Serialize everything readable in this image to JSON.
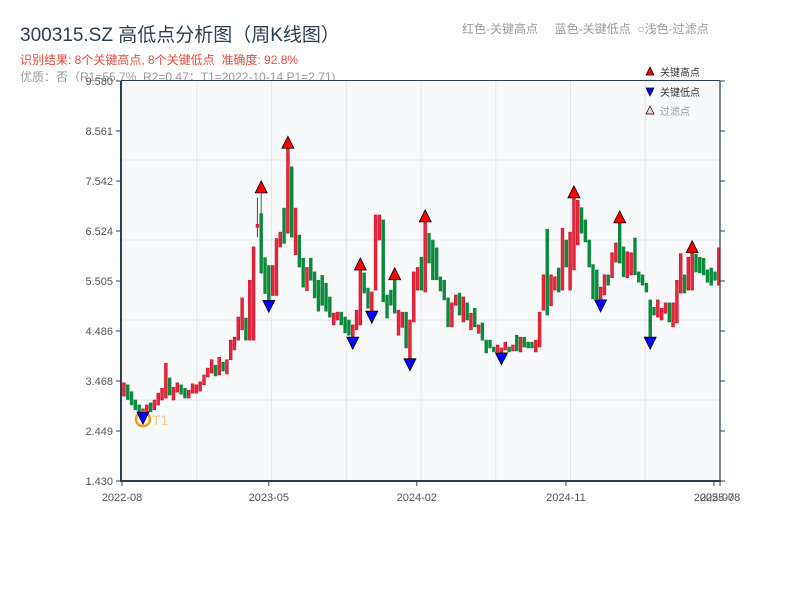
{
  "header": {
    "title": "300315.SZ 高低点分析图（周K线图）",
    "result_line": "识别结果: 8个关键高点, 8个关键低点  准确度: 92.8%",
    "quality_line": "优质：否（R1=55.7%, R2=0.47；T1=2022-10-14 P1=2.71)"
  },
  "top_legend": {
    "text": "红色-关键高点     蓝色-关键低点  ○浅色-过滤点"
  },
  "legend": {
    "position": "upper right",
    "items": [
      {
        "label": "关键高点",
        "marker": "triangle-up",
        "fill": "#ff0000",
        "text_color": "#333333"
      },
      {
        "label": "关键低点",
        "marker": "triangle-down",
        "fill": "#0000ff",
        "text_color": "#333333"
      },
      {
        "label": "过滤点",
        "marker": "triangle-up",
        "fill": "#ffd0d0",
        "text_color": "#9a9a9a"
      }
    ]
  },
  "colors": {
    "up_fill": "#e8293b",
    "up_stroke": "#c8102e",
    "down_fill": "#0b8a3c",
    "high_marker": "#ff0000",
    "low_marker": "#0000ff",
    "t1_ring": "#f39c12",
    "t1_label": "#f5c98a",
    "axis": "#2c3e50",
    "grid": "#e3e7ec",
    "plot_bg": "#f7f9fb",
    "tick_label": "#555555"
  },
  "chart_data": {
    "type": "bar",
    "subtype": "candlestick_ohlc",
    "title": "300315.SZ 高低点分析图（周K线图）",
    "xlabel": "",
    "ylabel": "",
    "ylim": [
      1.43,
      9.58
    ],
    "xlim": [
      -0.5,
      156.3
    ],
    "grid": true,
    "yticks": [
      {
        "label": "9.580",
        "value": 9.58
      },
      {
        "label": "8.561",
        "value": 8.561
      },
      {
        "label": "7.542",
        "value": 7.542
      },
      {
        "label": "6.524",
        "value": 6.524
      },
      {
        "label": "5.505",
        "value": 5.505
      },
      {
        "label": "4.486",
        "value": 4.486
      },
      {
        "label": "3.468",
        "value": 3.468
      },
      {
        "label": "2.449",
        "value": 2.449
      },
      {
        "label": "1.430",
        "value": 1.43
      }
    ],
    "xticks": [
      {
        "label": "2022-08",
        "at": -0.5
      },
      {
        "label": "2023-05",
        "at": 38.0
      },
      {
        "label": "2024-02",
        "at": 76.8
      },
      {
        "label": "2024-11",
        "at": 115.9
      },
      {
        "label": "2025-07",
        "at": 154.7
      },
      {
        "label": "2025-08",
        "at": 156.3
      }
    ],
    "ohlc_fields": [
      "open",
      "high",
      "low",
      "close"
    ],
    "ohlc": [
      [
        3.16,
        3.43,
        3.16,
        3.43
      ],
      [
        3.39,
        3.39,
        3.09,
        3.09
      ],
      [
        3.25,
        3.25,
        2.98,
        2.98
      ],
      [
        3.08,
        3.08,
        2.88,
        2.88
      ],
      [
        2.98,
        2.98,
        2.81,
        2.81
      ],
      [
        2.71,
        2.9,
        2.71,
        2.9
      ],
      [
        2.79,
        2.98,
        2.79,
        2.98
      ],
      [
        3.02,
        3.02,
        2.84,
        2.84
      ],
      [
        2.88,
        3.08,
        2.88,
        3.08
      ],
      [
        2.98,
        3.22,
        2.98,
        3.22
      ],
      [
        3.08,
        3.32,
        3.08,
        3.32
      ],
      [
        3.12,
        3.83,
        3.12,
        3.83
      ],
      [
        3.53,
        3.53,
        3.18,
        3.18
      ],
      [
        3.08,
        3.34,
        3.08,
        3.34
      ],
      [
        3.24,
        3.43,
        3.24,
        3.43
      ],
      [
        3.39,
        3.39,
        3.2,
        3.2
      ],
      [
        3.32,
        3.32,
        3.12,
        3.12
      ],
      [
        3.12,
        3.28,
        3.12,
        3.28
      ],
      [
        3.22,
        3.41,
        3.22,
        3.41
      ],
      [
        3.22,
        3.39,
        3.22,
        3.39
      ],
      [
        3.26,
        3.45,
        3.26,
        3.45
      ],
      [
        3.39,
        3.59,
        3.39,
        3.59
      ],
      [
        3.55,
        3.73,
        3.55,
        3.73
      ],
      [
        3.63,
        3.9,
        3.63,
        3.9
      ],
      [
        3.79,
        3.79,
        3.57,
        3.57
      ],
      [
        3.59,
        3.95,
        3.59,
        3.95
      ],
      [
        3.85,
        3.85,
        3.67,
        3.67
      ],
      [
        3.61,
        3.9,
        3.61,
        3.9
      ],
      [
        3.9,
        4.3,
        3.9,
        4.3
      ],
      [
        4.1,
        4.36,
        4.1,
        4.36
      ],
      [
        4.3,
        4.77,
        4.3,
        4.77
      ],
      [
        4.51,
        5.16,
        4.51,
        5.16
      ],
      [
        4.75,
        4.75,
        4.3,
        4.3
      ],
      [
        4.3,
        5.52,
        4.3,
        5.52
      ],
      [
        4.3,
        6.2,
        4.3,
        6.2
      ],
      [
        6.6,
        7.2,
        6.4,
        6.66
      ],
      [
        6.88,
        7.3,
        5.65,
        5.67
      ],
      [
        5.98,
        5.98,
        5.25,
        5.25
      ],
      [
        5.82,
        5.82,
        5.11,
        5.11
      ],
      [
        5.21,
        5.82,
        5.21,
        5.82
      ],
      [
        5.21,
        6.37,
        5.21,
        6.37
      ],
      [
        6.2,
        6.5,
        6.2,
        6.5
      ],
      [
        6.99,
        6.99,
        6.27,
        6.27
      ],
      [
        6.48,
        8.21,
        6.48,
        8.21
      ],
      [
        7.83,
        7.83,
        6.4,
        6.4
      ],
      [
        6.04,
        6.99,
        6.04,
        6.99
      ],
      [
        6.44,
        6.44,
        5.79,
        5.79
      ],
      [
        5.97,
        5.97,
        5.38,
        5.38
      ],
      [
        5.31,
        5.78,
        5.31,
        5.78
      ],
      [
        5.97,
        5.97,
        5.52,
        5.52
      ],
      [
        5.69,
        5.69,
        5.16,
        5.16
      ],
      [
        5.52,
        5.52,
        4.89,
        4.89
      ],
      [
        5.62,
        5.62,
        5.01,
        5.01
      ],
      [
        5.46,
        5.46,
        4.89,
        4.89
      ],
      [
        5.18,
        5.18,
        4.77,
        4.77
      ],
      [
        4.61,
        4.85,
        4.61,
        4.85
      ],
      [
        4.71,
        4.87,
        4.71,
        4.87
      ],
      [
        4.87,
        4.87,
        4.61,
        4.61
      ],
      [
        4.77,
        4.77,
        4.45,
        4.45
      ],
      [
        4.71,
        4.71,
        4.4,
        4.4
      ],
      [
        4.36,
        4.61,
        4.36,
        4.61
      ],
      [
        4.51,
        4.91,
        4.51,
        4.91
      ],
      [
        4.61,
        5.73,
        4.61,
        5.73
      ],
      [
        5.67,
        5.67,
        5.26,
        5.26
      ],
      [
        5.36,
        5.36,
        4.95,
        4.95
      ],
      [
        4.89,
        5.28,
        4.89,
        5.28
      ],
      [
        5.32,
        6.85,
        5.32,
        6.85
      ],
      [
        6.34,
        6.85,
        6.34,
        6.85
      ],
      [
        6.75,
        6.75,
        5.08,
        5.08
      ],
      [
        5.22,
        5.22,
        4.75,
        4.75
      ],
      [
        5.32,
        5.32,
        5.01,
        5.01
      ],
      [
        5.53,
        5.53,
        4.85,
        4.85
      ],
      [
        4.4,
        4.91,
        4.4,
        4.91
      ],
      [
        4.56,
        4.87,
        4.56,
        4.87
      ],
      [
        4.87,
        4.87,
        4.14,
        4.14
      ],
      [
        3.92,
        4.71,
        3.92,
        4.71
      ],
      [
        4.67,
        5.69,
        4.67,
        5.69
      ],
      [
        5.32,
        5.78,
        5.32,
        5.78
      ],
      [
        5.99,
        5.99,
        5.32,
        5.32
      ],
      [
        5.28,
        6.71,
        5.28,
        6.71
      ],
      [
        6.48,
        6.48,
        5.87,
        5.87
      ],
      [
        6.34,
        6.34,
        5.53,
        5.53
      ],
      [
        6.18,
        6.18,
        5.53,
        5.53
      ],
      [
        5.59,
        5.59,
        5.3,
        5.3
      ],
      [
        5.52,
        5.52,
        5.12,
        5.12
      ],
      [
        5.16,
        5.16,
        4.57,
        4.57
      ],
      [
        4.57,
        5.06,
        4.57,
        5.06
      ],
      [
        5.01,
        5.22,
        5.01,
        5.22
      ],
      [
        5.26,
        5.26,
        4.81,
        4.81
      ],
      [
        4.67,
        5.18,
        4.67,
        5.18
      ],
      [
        5.06,
        5.06,
        4.71,
        4.71
      ],
      [
        4.51,
        4.85,
        4.51,
        4.85
      ],
      [
        4.95,
        4.95,
        4.57,
        4.57
      ],
      [
        4.44,
        4.61,
        4.44,
        4.61
      ],
      [
        4.65,
        4.65,
        4.3,
        4.3
      ],
      [
        4.3,
        4.3,
        4.04,
        4.04
      ],
      [
        4.3,
        4.3,
        4.14,
        4.14
      ],
      [
        4.16,
        4.16,
        4.06,
        4.06
      ],
      [
        4.06,
        4.2,
        4.06,
        4.2
      ],
      [
        4.04,
        4.14,
        4.04,
        4.14
      ],
      [
        4.1,
        4.26,
        4.1,
        4.26
      ],
      [
        4.16,
        4.16,
        4.06,
        4.06
      ],
      [
        4.08,
        4.2,
        4.08,
        4.2
      ],
      [
        4.4,
        4.4,
        4.08,
        4.08
      ],
      [
        4.06,
        4.36,
        4.06,
        4.36
      ],
      [
        4.36,
        4.36,
        4.16,
        4.16
      ],
      [
        4.26,
        4.26,
        4.14,
        4.14
      ],
      [
        4.26,
        4.26,
        4.14,
        4.14
      ],
      [
        4.06,
        4.3,
        4.06,
        4.3
      ],
      [
        4.16,
        4.87,
        4.16,
        4.87
      ],
      [
        4.91,
        5.63,
        4.91,
        5.63
      ],
      [
        6.56,
        6.56,
        4.81,
        4.81
      ],
      [
        5.0,
        5.63,
        5.0,
        5.63
      ],
      [
        5.32,
        5.59,
        5.32,
        5.59
      ],
      [
        5.77,
        5.77,
        5.28,
        5.28
      ],
      [
        5.32,
        6.58,
        5.32,
        6.58
      ],
      [
        6.34,
        6.34,
        5.79,
        5.79
      ],
      [
        5.32,
        6.5,
        5.32,
        6.5
      ],
      [
        5.73,
        7.2,
        5.73,
        7.2
      ],
      [
        6.24,
        7.15,
        6.24,
        7.15
      ],
      [
        7.0,
        7.0,
        6.48,
        6.48
      ],
      [
        6.75,
        6.75,
        6.3,
        6.3
      ],
      [
        6.34,
        6.34,
        5.79,
        5.79
      ],
      [
        5.84,
        5.84,
        5.14,
        5.14
      ],
      [
        5.73,
        5.73,
        5.14,
        5.14
      ],
      [
        5.12,
        5.38,
        5.12,
        5.38
      ],
      [
        5.22,
        5.63,
        5.22,
        5.63
      ],
      [
        5.63,
        5.63,
        5.42,
        5.42
      ],
      [
        5.57,
        6.08,
        5.57,
        6.08
      ],
      [
        5.89,
        6.28,
        5.89,
        6.28
      ],
      [
        6.69,
        6.69,
        5.87,
        5.87
      ],
      [
        6.2,
        6.2,
        5.59,
        5.59
      ],
      [
        5.57,
        6.1,
        5.57,
        6.1
      ],
      [
        5.63,
        6.08,
        5.63,
        6.08
      ],
      [
        6.38,
        6.38,
        5.63,
        5.63
      ],
      [
        5.69,
        5.69,
        5.48,
        5.48
      ],
      [
        5.63,
        5.63,
        5.42,
        5.42
      ],
      [
        5.46,
        5.46,
        5.28,
        5.28
      ],
      [
        5.12,
        5.12,
        4.36,
        4.36
      ],
      [
        4.97,
        4.97,
        4.81,
        4.81
      ],
      [
        4.77,
        5.12,
        4.77,
        5.12
      ],
      [
        4.71,
        4.95,
        4.71,
        4.95
      ],
      [
        4.85,
        5.06,
        4.85,
        5.06
      ],
      [
        5.06,
        5.06,
        4.67,
        4.67
      ],
      [
        4.57,
        5.06,
        4.57,
        5.06
      ],
      [
        4.65,
        5.52,
        4.65,
        5.52
      ],
      [
        5.26,
        6.06,
        5.26,
        6.06
      ],
      [
        5.63,
        5.63,
        5.26,
        5.26
      ],
      [
        5.32,
        5.99,
        5.32,
        5.99
      ],
      [
        5.32,
        6.08,
        5.32,
        6.08
      ],
      [
        6.05,
        6.05,
        5.69,
        5.69
      ],
      [
        5.99,
        5.99,
        5.67,
        5.67
      ],
      [
        5.97,
        5.97,
        5.63,
        5.63
      ],
      [
        5.73,
        5.73,
        5.48,
        5.48
      ],
      [
        5.77,
        5.77,
        5.42,
        5.42
      ],
      [
        5.69,
        5.69,
        5.52,
        5.52
      ],
      [
        5.42,
        6.18,
        5.42,
        6.18
      ]
    ],
    "key_highs": [
      {
        "index": 36,
        "price": 7.3
      },
      {
        "index": 43,
        "price": 8.21
      },
      {
        "index": 62,
        "price": 5.73
      },
      {
        "index": 71,
        "price": 5.53
      },
      {
        "index": 79,
        "price": 6.71
      },
      {
        "index": 118,
        "price": 7.2
      },
      {
        "index": 130,
        "price": 6.69
      },
      {
        "index": 149,
        "price": 6.08
      }
    ],
    "key_lows": [
      {
        "index": 5,
        "price": 2.71
      },
      {
        "index": 38,
        "price": 5.11
      },
      {
        "index": 60,
        "price": 4.36
      },
      {
        "index": 65,
        "price": 4.89
      },
      {
        "index": 75,
        "price": 3.92
      },
      {
        "index": 99,
        "price": 4.04
      },
      {
        "index": 125,
        "price": 5.12
      },
      {
        "index": 138,
        "price": 4.36
      }
    ],
    "filtered_points": [],
    "annotations": [
      {
        "label": "T1",
        "index": 5,
        "price": 2.71,
        "style": "ring"
      }
    ]
  }
}
